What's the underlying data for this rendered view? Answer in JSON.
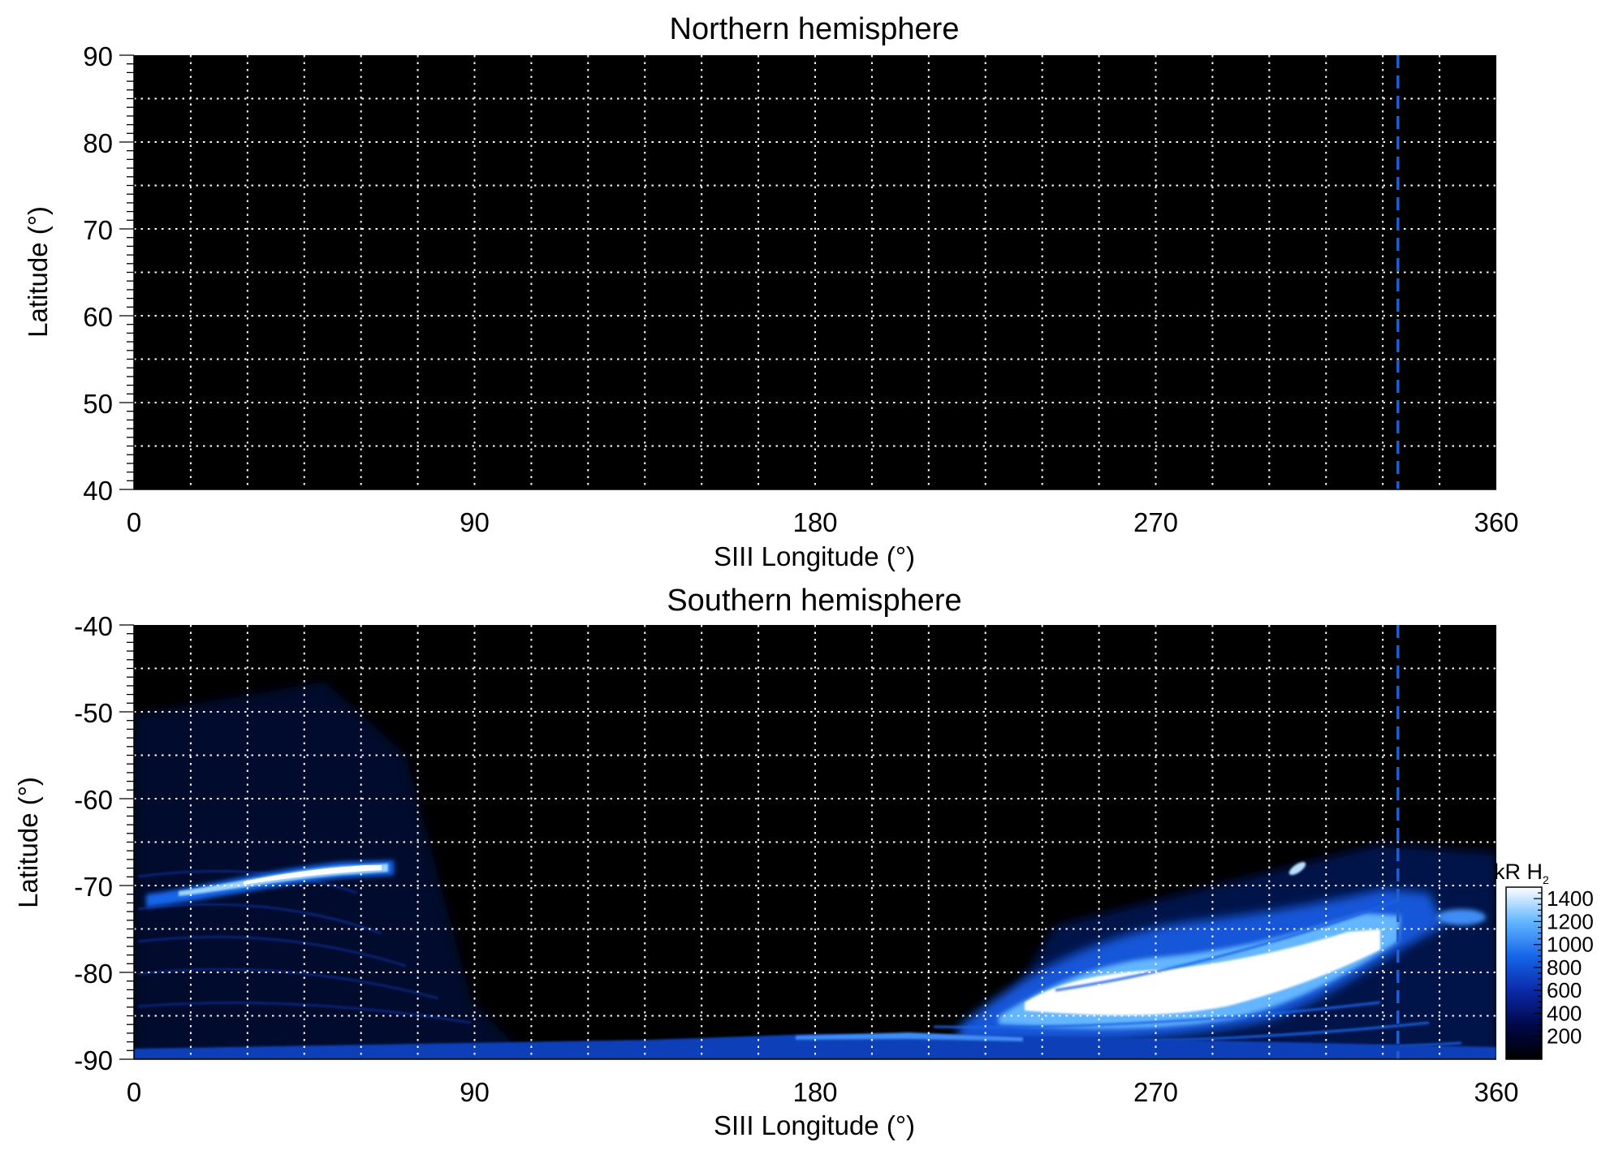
{
  "chart_data": [
    {
      "type": "heatmap",
      "title": "Northern hemisphere",
      "xlabel": "SIII Longitude (°)",
      "ylabel": "Latitude (°)",
      "xlim": [
        0,
        360
      ],
      "ylim": [
        40,
        90
      ],
      "x_ticks": [
        "0",
        "90",
        "180",
        "270",
        "360"
      ],
      "y_ticks": [
        "40",
        "50",
        "60",
        "70",
        "80",
        "90"
      ],
      "grid": true,
      "grid_x_step": 15,
      "grid_y_step": 5,
      "dashed_reference_longitude": 334,
      "emission_regions": []
    },
    {
      "type": "heatmap",
      "title": "Southern hemisphere",
      "xlabel": "SIII Longitude (°)",
      "ylabel": "Latitude (°)",
      "xlim": [
        0,
        360
      ],
      "ylim": [
        -90,
        -40
      ],
      "x_ticks": [
        "0",
        "90",
        "180",
        "270",
        "360"
      ],
      "y_ticks": [
        "-40",
        "-50",
        "-60",
        "-70",
        "-80",
        "-90"
      ],
      "grid": true,
      "grid_x_step": 15,
      "grid_y_step": 5,
      "dashed_reference_longitude": 334,
      "emission_regions": [
        {
          "lon": [
            0,
            68
          ],
          "lat_center": [
            -71.5,
            -68.5
          ],
          "peak_kR": 1400
        },
        {
          "lon": [
            220,
            334
          ],
          "lat_center": [
            -86.5,
            -77
          ],
          "peak_kR": 1400
        },
        {
          "lon": [
            0,
            360
          ],
          "lat_center": [
            -89.5,
            -89.5
          ],
          "peak_kR": 500
        }
      ]
    }
  ],
  "colorbar": {
    "label_main": "kR H",
    "label_sub": "2",
    "range": [
      0,
      1500
    ],
    "tick_labels": [
      "200",
      "400",
      "600",
      "800",
      "1000",
      "1200",
      "1400"
    ],
    "colors": [
      "#000000",
      "#00084a",
      "#0b2aa8",
      "#1666ea",
      "#63b6ff",
      "#ffffff"
    ]
  },
  "colors": {
    "map_background": "#000000",
    "grid": "#ffffff",
    "reference_line": "#1f5fd0"
  }
}
